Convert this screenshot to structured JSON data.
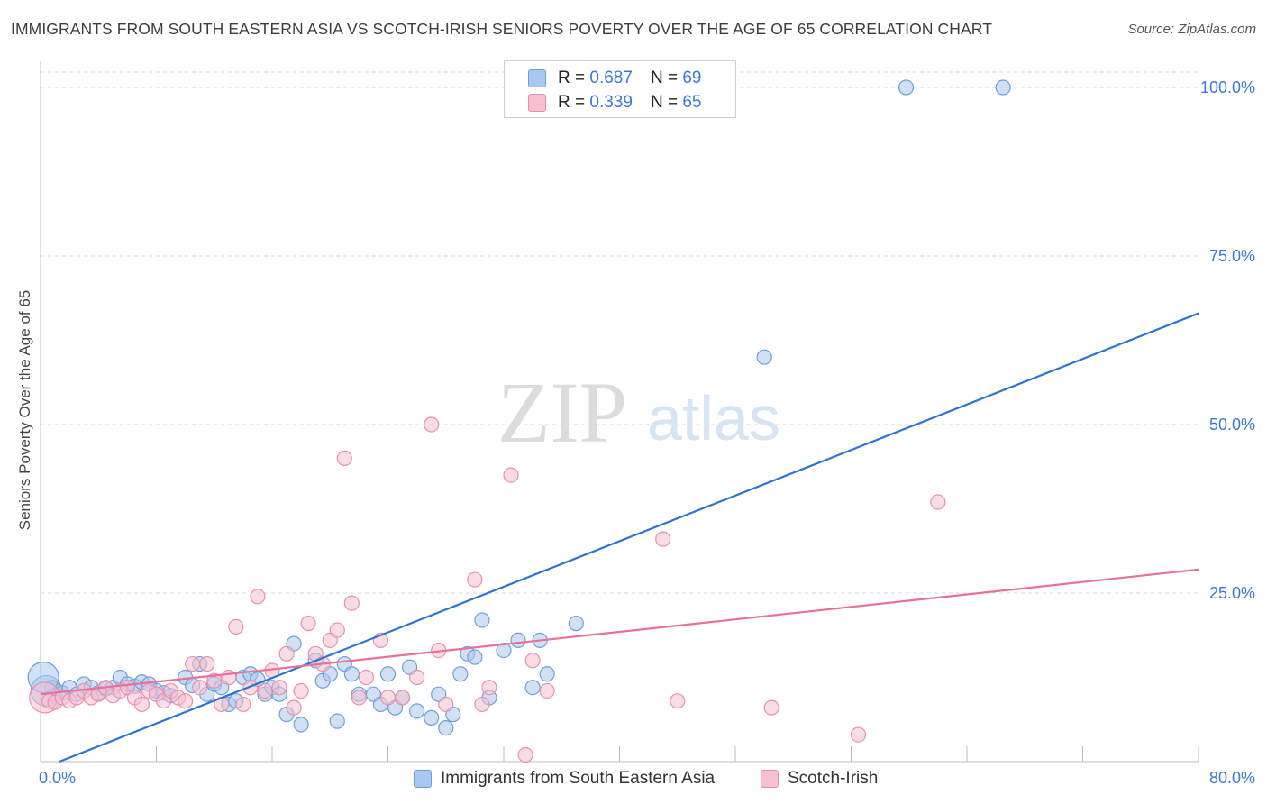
{
  "header": {
    "title": "IMMIGRANTS FROM SOUTH EASTERN ASIA VS SCOTCH-IRISH SENIORS POVERTY OVER THE AGE OF 65 CORRELATION CHART",
    "source": "Source: ZipAtlas.com"
  },
  "watermark": {
    "zip": "ZIP",
    "atlas": "atlas"
  },
  "legend": {
    "rows": [
      {
        "r_label": "R =",
        "r_value": "0.687",
        "n_label": "N =",
        "n_value": "69"
      },
      {
        "r_label": "R =",
        "r_value": "0.339",
        "n_label": "N =",
        "n_value": "65"
      }
    ]
  },
  "bottom_legend": {
    "blue": "Immigrants from South Eastern Asia",
    "pink": "Scotch-Irish"
  },
  "colors": {
    "blue_fill": "#a9c8f0",
    "blue_stroke": "#6f9fd8",
    "blue_line": "#2f74d0",
    "pink_fill": "#f7bfd0",
    "pink_stroke": "#e890ab",
    "pink_line": "#e8709a",
    "tick_text": "#3c78d8",
    "grid": "#d9d9d9"
  },
  "chart_data": {
    "type": "scatter",
    "title": "IMMIGRANTS FROM SOUTH EASTERN ASIA VS SCOTCH-IRISH SENIORS POVERTY OVER THE AGE OF 65 CORRELATION CHART",
    "xlabel": "",
    "ylabel": "Seniors Poverty Over the Age of 65",
    "xlim": [
      0,
      80
    ],
    "ylim": [
      0,
      100
    ],
    "x_tick_labels": [
      "0.0%",
      "80.0%"
    ],
    "y_tick_labels": [
      "100.0%",
      "75.0%",
      "50.0%",
      "25.0%"
    ],
    "y_tick_values": [
      100,
      75,
      50,
      25
    ],
    "grid": "horizontal dashed",
    "legend_position": "top-center",
    "series": [
      {
        "name": "Immigrants from South Eastern Asia",
        "color": "blue",
        "r": 0.687,
        "n": 69,
        "trend": [
          [
            1.3,
            0
          ],
          [
            80,
            66.5
          ]
        ],
        "points": [
          [
            0.4,
            10.5
          ],
          [
            0.8,
            11.0
          ],
          [
            1.0,
            9.8
          ],
          [
            1.5,
            10.2
          ],
          [
            2.0,
            11.0
          ],
          [
            2.5,
            10.0
          ],
          [
            3.0,
            11.5
          ],
          [
            3.5,
            11.0
          ],
          [
            4.0,
            10.2
          ],
          [
            4.5,
            10.8
          ],
          [
            5.0,
            11.0
          ],
          [
            5.5,
            12.5
          ],
          [
            6.0,
            11.5
          ],
          [
            6.5,
            11.2
          ],
          [
            7.0,
            11.8
          ],
          [
            7.5,
            11.5
          ],
          [
            8.0,
            10.5
          ],
          [
            8.5,
            10.2
          ],
          [
            9.0,
            9.8
          ],
          [
            10.0,
            12.5
          ],
          [
            10.5,
            11.3
          ],
          [
            11.0,
            14.5
          ],
          [
            11.5,
            10.0
          ],
          [
            12.0,
            11.5
          ],
          [
            12.5,
            11.0
          ],
          [
            13.0,
            8.5
          ],
          [
            13.5,
            9.0
          ],
          [
            14.0,
            12.5
          ],
          [
            14.5,
            13.0
          ],
          [
            15.0,
            12.2
          ],
          [
            15.5,
            10.0
          ],
          [
            16.0,
            11.0
          ],
          [
            16.5,
            10.0
          ],
          [
            17.0,
            7.0
          ],
          [
            17.5,
            17.5
          ],
          [
            18.0,
            5.5
          ],
          [
            19.0,
            15.0
          ],
          [
            19.5,
            12.0
          ],
          [
            20.0,
            13.0
          ],
          [
            20.5,
            6.0
          ],
          [
            21.0,
            14.5
          ],
          [
            21.5,
            13.0
          ],
          [
            22.0,
            10.0
          ],
          [
            23.0,
            10.0
          ],
          [
            23.5,
            8.5
          ],
          [
            24.0,
            13.0
          ],
          [
            24.5,
            8.0
          ],
          [
            25.0,
            9.5
          ],
          [
            25.5,
            14.0
          ],
          [
            26.0,
            7.5
          ],
          [
            27.0,
            6.5
          ],
          [
            27.5,
            10.0
          ],
          [
            28.0,
            5.0
          ],
          [
            28.5,
            7.0
          ],
          [
            29.0,
            13.0
          ],
          [
            29.5,
            16.0
          ],
          [
            30.0,
            15.5
          ],
          [
            30.5,
            21.0
          ],
          [
            31.0,
            9.5
          ],
          [
            32.0,
            16.5
          ],
          [
            33.0,
            18.0
          ],
          [
            34.0,
            11.0
          ],
          [
            34.5,
            18.0
          ],
          [
            35.0,
            13.0
          ],
          [
            37.0,
            20.5
          ],
          [
            50.0,
            60.0
          ],
          [
            59.8,
            100.0
          ],
          [
            66.5,
            100.0
          ],
          [
            0.2,
            12.5
          ]
        ]
      },
      {
        "name": "Scotch-Irish",
        "color": "pink",
        "r": 0.339,
        "n": 65,
        "trend": [
          [
            0,
            10.0
          ],
          [
            80,
            28.5
          ]
        ],
        "points": [
          [
            0.3,
            9.5
          ],
          [
            0.6,
            9.0
          ],
          [
            1.0,
            8.8
          ],
          [
            1.5,
            9.5
          ],
          [
            2.0,
            9.0
          ],
          [
            2.5,
            9.5
          ],
          [
            3.0,
            10.5
          ],
          [
            3.5,
            9.5
          ],
          [
            4.0,
            10.0
          ],
          [
            4.5,
            11.0
          ],
          [
            5.0,
            9.8
          ],
          [
            5.5,
            10.5
          ],
          [
            6.0,
            11.0
          ],
          [
            6.5,
            9.5
          ],
          [
            7.0,
            8.5
          ],
          [
            7.5,
            10.5
          ],
          [
            8.0,
            10.0
          ],
          [
            8.5,
            9.0
          ],
          [
            9.0,
            10.5
          ],
          [
            9.5,
            9.5
          ],
          [
            10.0,
            9.0
          ],
          [
            10.5,
            14.5
          ],
          [
            11.0,
            11.0
          ],
          [
            11.5,
            14.5
          ],
          [
            12.0,
            12.0
          ],
          [
            12.5,
            8.5
          ],
          [
            13.0,
            12.5
          ],
          [
            13.5,
            20.0
          ],
          [
            14.0,
            8.5
          ],
          [
            14.5,
            11.0
          ],
          [
            15.0,
            24.5
          ],
          [
            15.5,
            10.5
          ],
          [
            16.0,
            13.5
          ],
          [
            16.5,
            11.0
          ],
          [
            17.0,
            16.0
          ],
          [
            17.5,
            8.0
          ],
          [
            18.0,
            10.5
          ],
          [
            18.5,
            20.5
          ],
          [
            19.0,
            16.0
          ],
          [
            19.5,
            14.5
          ],
          [
            20.0,
            18.0
          ],
          [
            20.5,
            19.5
          ],
          [
            21.0,
            45.0
          ],
          [
            21.5,
            23.5
          ],
          [
            22.0,
            9.5
          ],
          [
            22.5,
            12.5
          ],
          [
            23.5,
            18.0
          ],
          [
            24.0,
            9.5
          ],
          [
            25.0,
            9.5
          ],
          [
            26.0,
            12.5
          ],
          [
            27.0,
            50.0
          ],
          [
            27.5,
            16.5
          ],
          [
            28.0,
            8.5
          ],
          [
            30.0,
            27.0
          ],
          [
            30.5,
            8.5
          ],
          [
            31.0,
            11.0
          ],
          [
            32.5,
            42.5
          ],
          [
            33.5,
            1.0
          ],
          [
            34.0,
            15.0
          ],
          [
            35.0,
            10.5
          ],
          [
            43.0,
            33.0
          ],
          [
            44.0,
            9.0
          ],
          [
            50.5,
            8.0
          ],
          [
            56.5,
            4.0
          ],
          [
            62.0,
            38.5
          ]
        ]
      }
    ]
  }
}
